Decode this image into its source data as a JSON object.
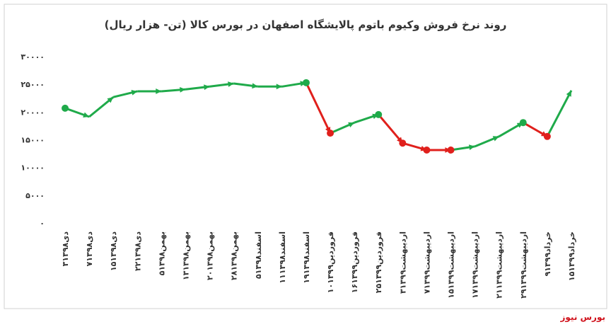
{
  "chart_data": {
    "type": "line",
    "title": "روند نرخ فروش وکیوم باتوم پالایشگاه اصفهان در بورس کالا (تن- هزار ریال)",
    "source": "بورس نیوز",
    "categories": [
      "۳دی۱۳۹۸",
      "۷دی۱۳۹۸",
      "۱۵دی۱۳۹۸",
      "۲۲دی۱۳۹۸",
      "۵بهمن۱۳۹۸",
      "۱۳بهمن۱۳۹۸",
      "۲۰بهمن۱۳۹۸",
      "۲۸بهمن۱۳۹۸",
      "۵اسفند۱۳۹۸",
      "۱۱اسفند۱۳۹۸",
      "۱۹اسفند۱۳۹۸",
      "۱۰فروردین۱۳۹۹",
      "۱۶فروردین۱۳۹۹",
      "۲۵فروردین۱۳۹۹",
      "۳اردیبهشت۱۳۹۹",
      "۷اردیبهشت۱۳۹۹",
      "۱۵اردیبهشت۱۳۹۹",
      "۱۷اردیبهشت۱۳۹۹",
      "۲۱اردیبهشت۱۳۹۹",
      "۲۹اردیبهشت۱۳۹۹",
      "۹خرداد۱۳۹۹",
      "۱۵خرداد۱۳۹۹"
    ],
    "values": [
      20700,
      19150,
      22700,
      23750,
      23750,
      24100,
      24600,
      25150,
      24600,
      24600,
      25300,
      16200,
      18100,
      19550,
      14400,
      13150,
      13150,
      13800,
      15600,
      18100,
      15600,
      23900
    ],
    "colors": [
      "#1faa4a",
      "#1faa4a",
      "#1faa4a",
      "#1faa4a",
      "#1faa4a",
      "#1faa4a",
      "#1faa4a",
      "#1faa4a",
      "#1faa4a",
      "#1faa4a",
      "#1faa4a",
      "#e0201c",
      "#1faa4a",
      "#1faa4a",
      "#e0201c",
      "#e0201c",
      "#e0201c",
      "#1faa4a",
      "#1faa4a",
      "#1faa4a",
      "#e0201c",
      "#1faa4a"
    ],
    "ylim": [
      0,
      30000
    ],
    "yticks": [
      {
        "value": 0,
        "label": "۰"
      },
      {
        "value": 5000,
        "label": "۵۰۰۰"
      },
      {
        "value": 10000,
        "label": "۱۰۰۰۰"
      },
      {
        "value": 15000,
        "label": "۱۵۰۰۰"
      },
      {
        "value": 20000,
        "label": "۲۰۰۰۰"
      },
      {
        "value": 25000,
        "label": "۲۵۰۰۰"
      },
      {
        "value": 30000,
        "label": "۳۰۰۰۰"
      }
    ],
    "grid": false
  }
}
